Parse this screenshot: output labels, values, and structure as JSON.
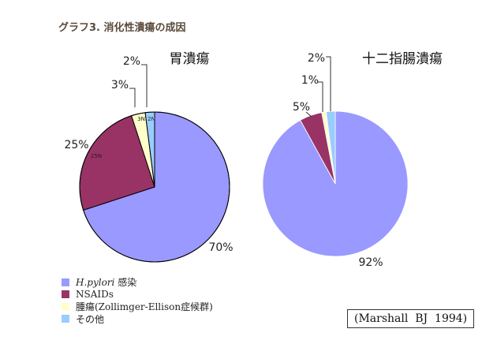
{
  "figure_title": "グラフ3. 消化性潰瘍の成因",
  "citation": "(Marshall  BJ  1994)",
  "legend": [
    {
      "label": "H.pylori 感染",
      "color": "#9999ff"
    },
    {
      "label": "NSAIDs",
      "color": "#993366"
    },
    {
      "label": "腫瘍(Zollimger-Ellison症候群)",
      "color": "#ffffcc"
    },
    {
      "label": "その他",
      "color": "#99ccff"
    }
  ],
  "chart_data": [
    {
      "type": "pie",
      "title": "胃潰瘍",
      "categories": [
        "H.pylori 感染",
        "NSAIDs",
        "腫瘍(Zollimger-Ellison症候群)",
        "その他"
      ],
      "values": [
        70,
        25,
        3,
        2
      ],
      "labels": [
        "70%",
        "25%",
        "3%",
        "2%"
      ],
      "inner_labels": [
        "",
        "25N",
        "3N",
        "2N"
      ],
      "colors": [
        "#9999ff",
        "#993366",
        "#ffffcc",
        "#99ccff"
      ]
    },
    {
      "type": "pie",
      "title": "十二指腸潰瘍",
      "categories": [
        "H.pylori 感染",
        "NSAIDs",
        "腫瘍(Zollimger-Ellison症候群)",
        "その他"
      ],
      "values": [
        92,
        5,
        1,
        2
      ],
      "labels": [
        "92%",
        "5%",
        "1%",
        "2%"
      ],
      "colors": [
        "#9999ff",
        "#993366",
        "#ffffcc",
        "#99ccff"
      ]
    }
  ]
}
